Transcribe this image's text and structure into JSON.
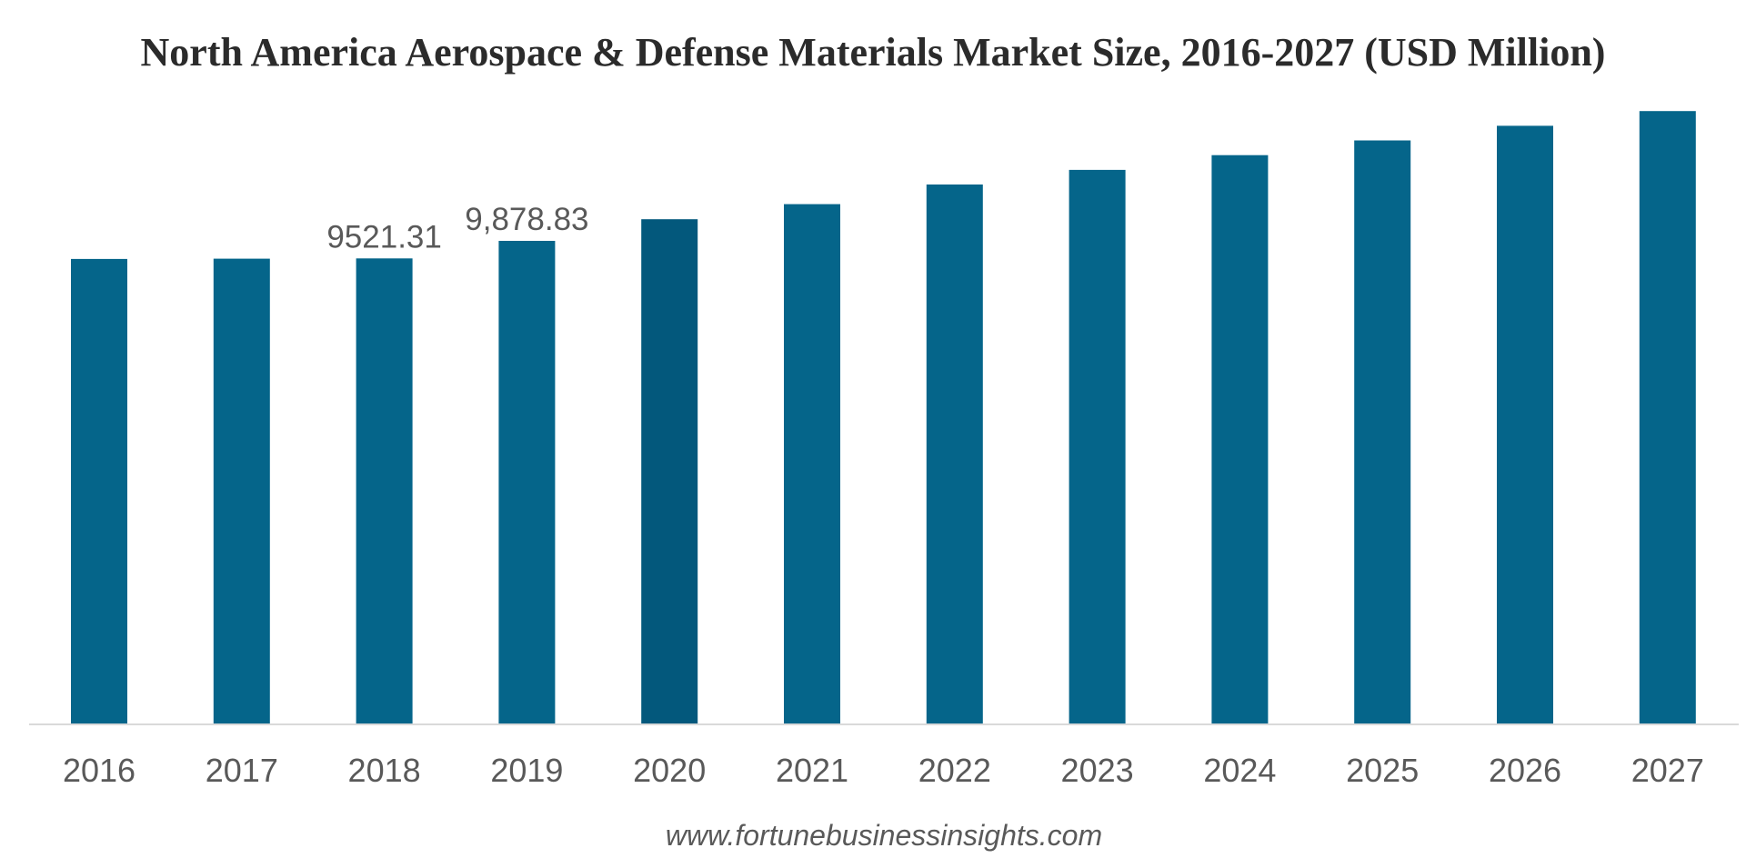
{
  "chart_data": {
    "type": "bar",
    "title": "North America Aerospace & Defense Materials Market Size, 2016-2027 (USD Million)",
    "xlabel": "",
    "ylabel": "",
    "categories": [
      "2016",
      "2017",
      "2018",
      "2019",
      "2020",
      "2021",
      "2022",
      "2023",
      "2024",
      "2025",
      "2026",
      "2027"
    ],
    "values": [
      9510,
      9515,
      9521.31,
      9878.83,
      10320,
      10630,
      11030,
      11330,
      11630,
      11930,
      12230,
      12530
    ],
    "data_labels": [
      {
        "index": 2,
        "text": "9521.31"
      },
      {
        "index": 3,
        "text": "9,878.83"
      }
    ],
    "ylim": [
      0,
      13500
    ],
    "grid": false,
    "legend": "none",
    "colors": {
      "bar": "#05658a",
      "bar_highlight": "#03587c",
      "axis": "#d9d9d9"
    },
    "highlight_index": 4
  },
  "source": "www.fortunebusinessinsights.com"
}
